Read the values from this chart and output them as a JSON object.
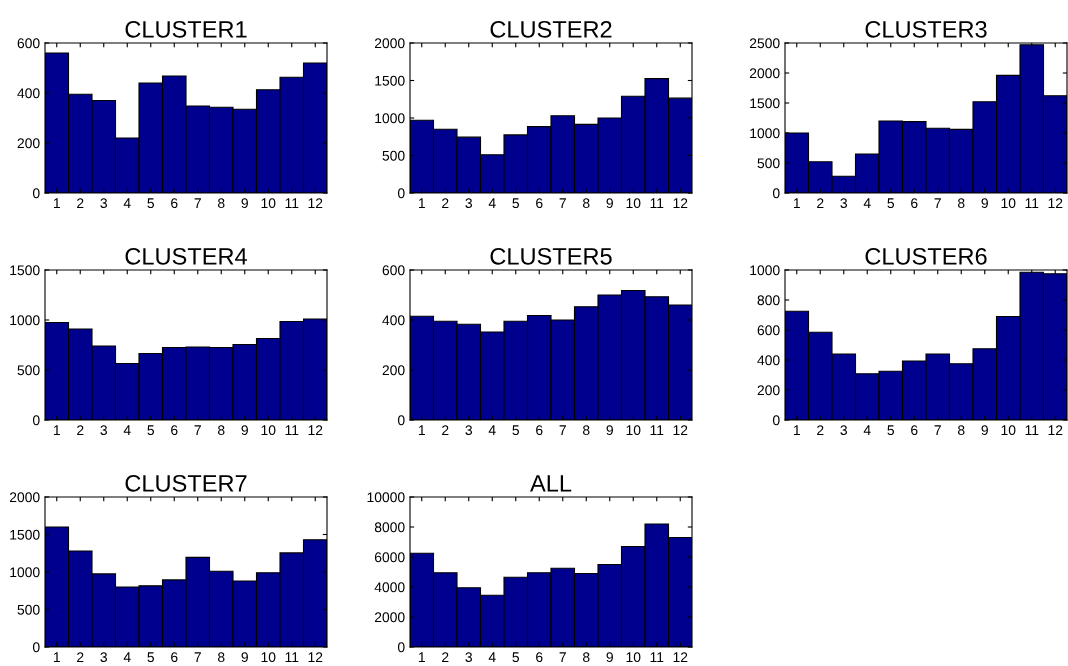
{
  "chart_data": [
    {
      "type": "bar",
      "title": "CLUSTER1",
      "categories": [
        "1",
        "2",
        "3",
        "4",
        "5",
        "6",
        "7",
        "8",
        "9",
        "10",
        "11",
        "12"
      ],
      "values": [
        560,
        395,
        370,
        220,
        440,
        468,
        348,
        343,
        335,
        413,
        463,
        520
      ],
      "color": "#00008f",
      "ylim": [
        0,
        600
      ],
      "yticks": [
        0,
        200,
        400,
        600
      ]
    },
    {
      "type": "bar",
      "title": "CLUSTER2",
      "categories": [
        "1",
        "2",
        "3",
        "4",
        "5",
        "6",
        "7",
        "8",
        "9",
        "10",
        "11",
        "12"
      ],
      "values": [
        970,
        850,
        745,
        510,
        775,
        885,
        1030,
        915,
        1000,
        1290,
        1525,
        1265
      ],
      "color": "#00008f",
      "ylim": [
        0,
        2000
      ],
      "yticks": [
        0,
        500,
        1000,
        1500,
        2000
      ]
    },
    {
      "type": "bar",
      "title": "CLUSTER3",
      "categories": [
        "1",
        "2",
        "3",
        "4",
        "5",
        "6",
        "7",
        "8",
        "9",
        "10",
        "11",
        "12"
      ],
      "values": [
        1000,
        520,
        280,
        650,
        1200,
        1190,
        1080,
        1060,
        1520,
        1960,
        2470,
        1620
      ],
      "color": "#00008f",
      "ylim": [
        0,
        2500
      ],
      "yticks": [
        0,
        500,
        1000,
        1500,
        2000,
        2500
      ]
    },
    {
      "type": "bar",
      "title": "CLUSTER4",
      "categories": [
        "1",
        "2",
        "3",
        "4",
        "5",
        "6",
        "7",
        "8",
        "9",
        "10",
        "11",
        "12"
      ],
      "values": [
        975,
        910,
        740,
        565,
        665,
        725,
        730,
        725,
        755,
        815,
        985,
        1010
      ],
      "color": "#00008f",
      "ylim": [
        0,
        1500
      ],
      "yticks": [
        0,
        500,
        1000,
        1500
      ]
    },
    {
      "type": "bar",
      "title": "CLUSTER5",
      "categories": [
        "1",
        "2",
        "3",
        "4",
        "5",
        "6",
        "7",
        "8",
        "9",
        "10",
        "11",
        "12"
      ],
      "values": [
        415,
        395,
        383,
        352,
        395,
        418,
        400,
        453,
        500,
        518,
        493,
        460
      ],
      "color": "#00008f",
      "ylim": [
        0,
        600
      ],
      "yticks": [
        0,
        200,
        400,
        600
      ]
    },
    {
      "type": "bar",
      "title": "CLUSTER6",
      "categories": [
        "1",
        "2",
        "3",
        "4",
        "5",
        "6",
        "7",
        "8",
        "9",
        "10",
        "11",
        "12"
      ],
      "values": [
        725,
        585,
        440,
        308,
        325,
        393,
        440,
        375,
        475,
        690,
        985,
        975
      ],
      "color": "#00008f",
      "ylim": [
        0,
        1000
      ],
      "yticks": [
        0,
        200,
        400,
        600,
        800,
        1000
      ]
    },
    {
      "type": "bar",
      "title": "CLUSTER7",
      "categories": [
        "1",
        "2",
        "3",
        "4",
        "5",
        "6",
        "7",
        "8",
        "9",
        "10",
        "11",
        "12"
      ],
      "values": [
        1600,
        1280,
        975,
        800,
        815,
        895,
        1195,
        1010,
        880,
        990,
        1255,
        1430
      ],
      "color": "#00008f",
      "ylim": [
        0,
        2000
      ],
      "yticks": [
        0,
        500,
        1000,
        1500,
        2000
      ]
    },
    {
      "type": "bar",
      "title": "ALL",
      "categories": [
        "1",
        "2",
        "3",
        "4",
        "5",
        "6",
        "7",
        "8",
        "9",
        "10",
        "11",
        "12"
      ],
      "values": [
        6250,
        4950,
        3950,
        3450,
        4650,
        4950,
        5250,
        4900,
        5500,
        6700,
        8200,
        7300
      ],
      "color": "#00008f",
      "ylim": [
        0,
        10000
      ],
      "yticks": [
        0,
        2000,
        4000,
        6000,
        8000,
        10000
      ]
    }
  ]
}
